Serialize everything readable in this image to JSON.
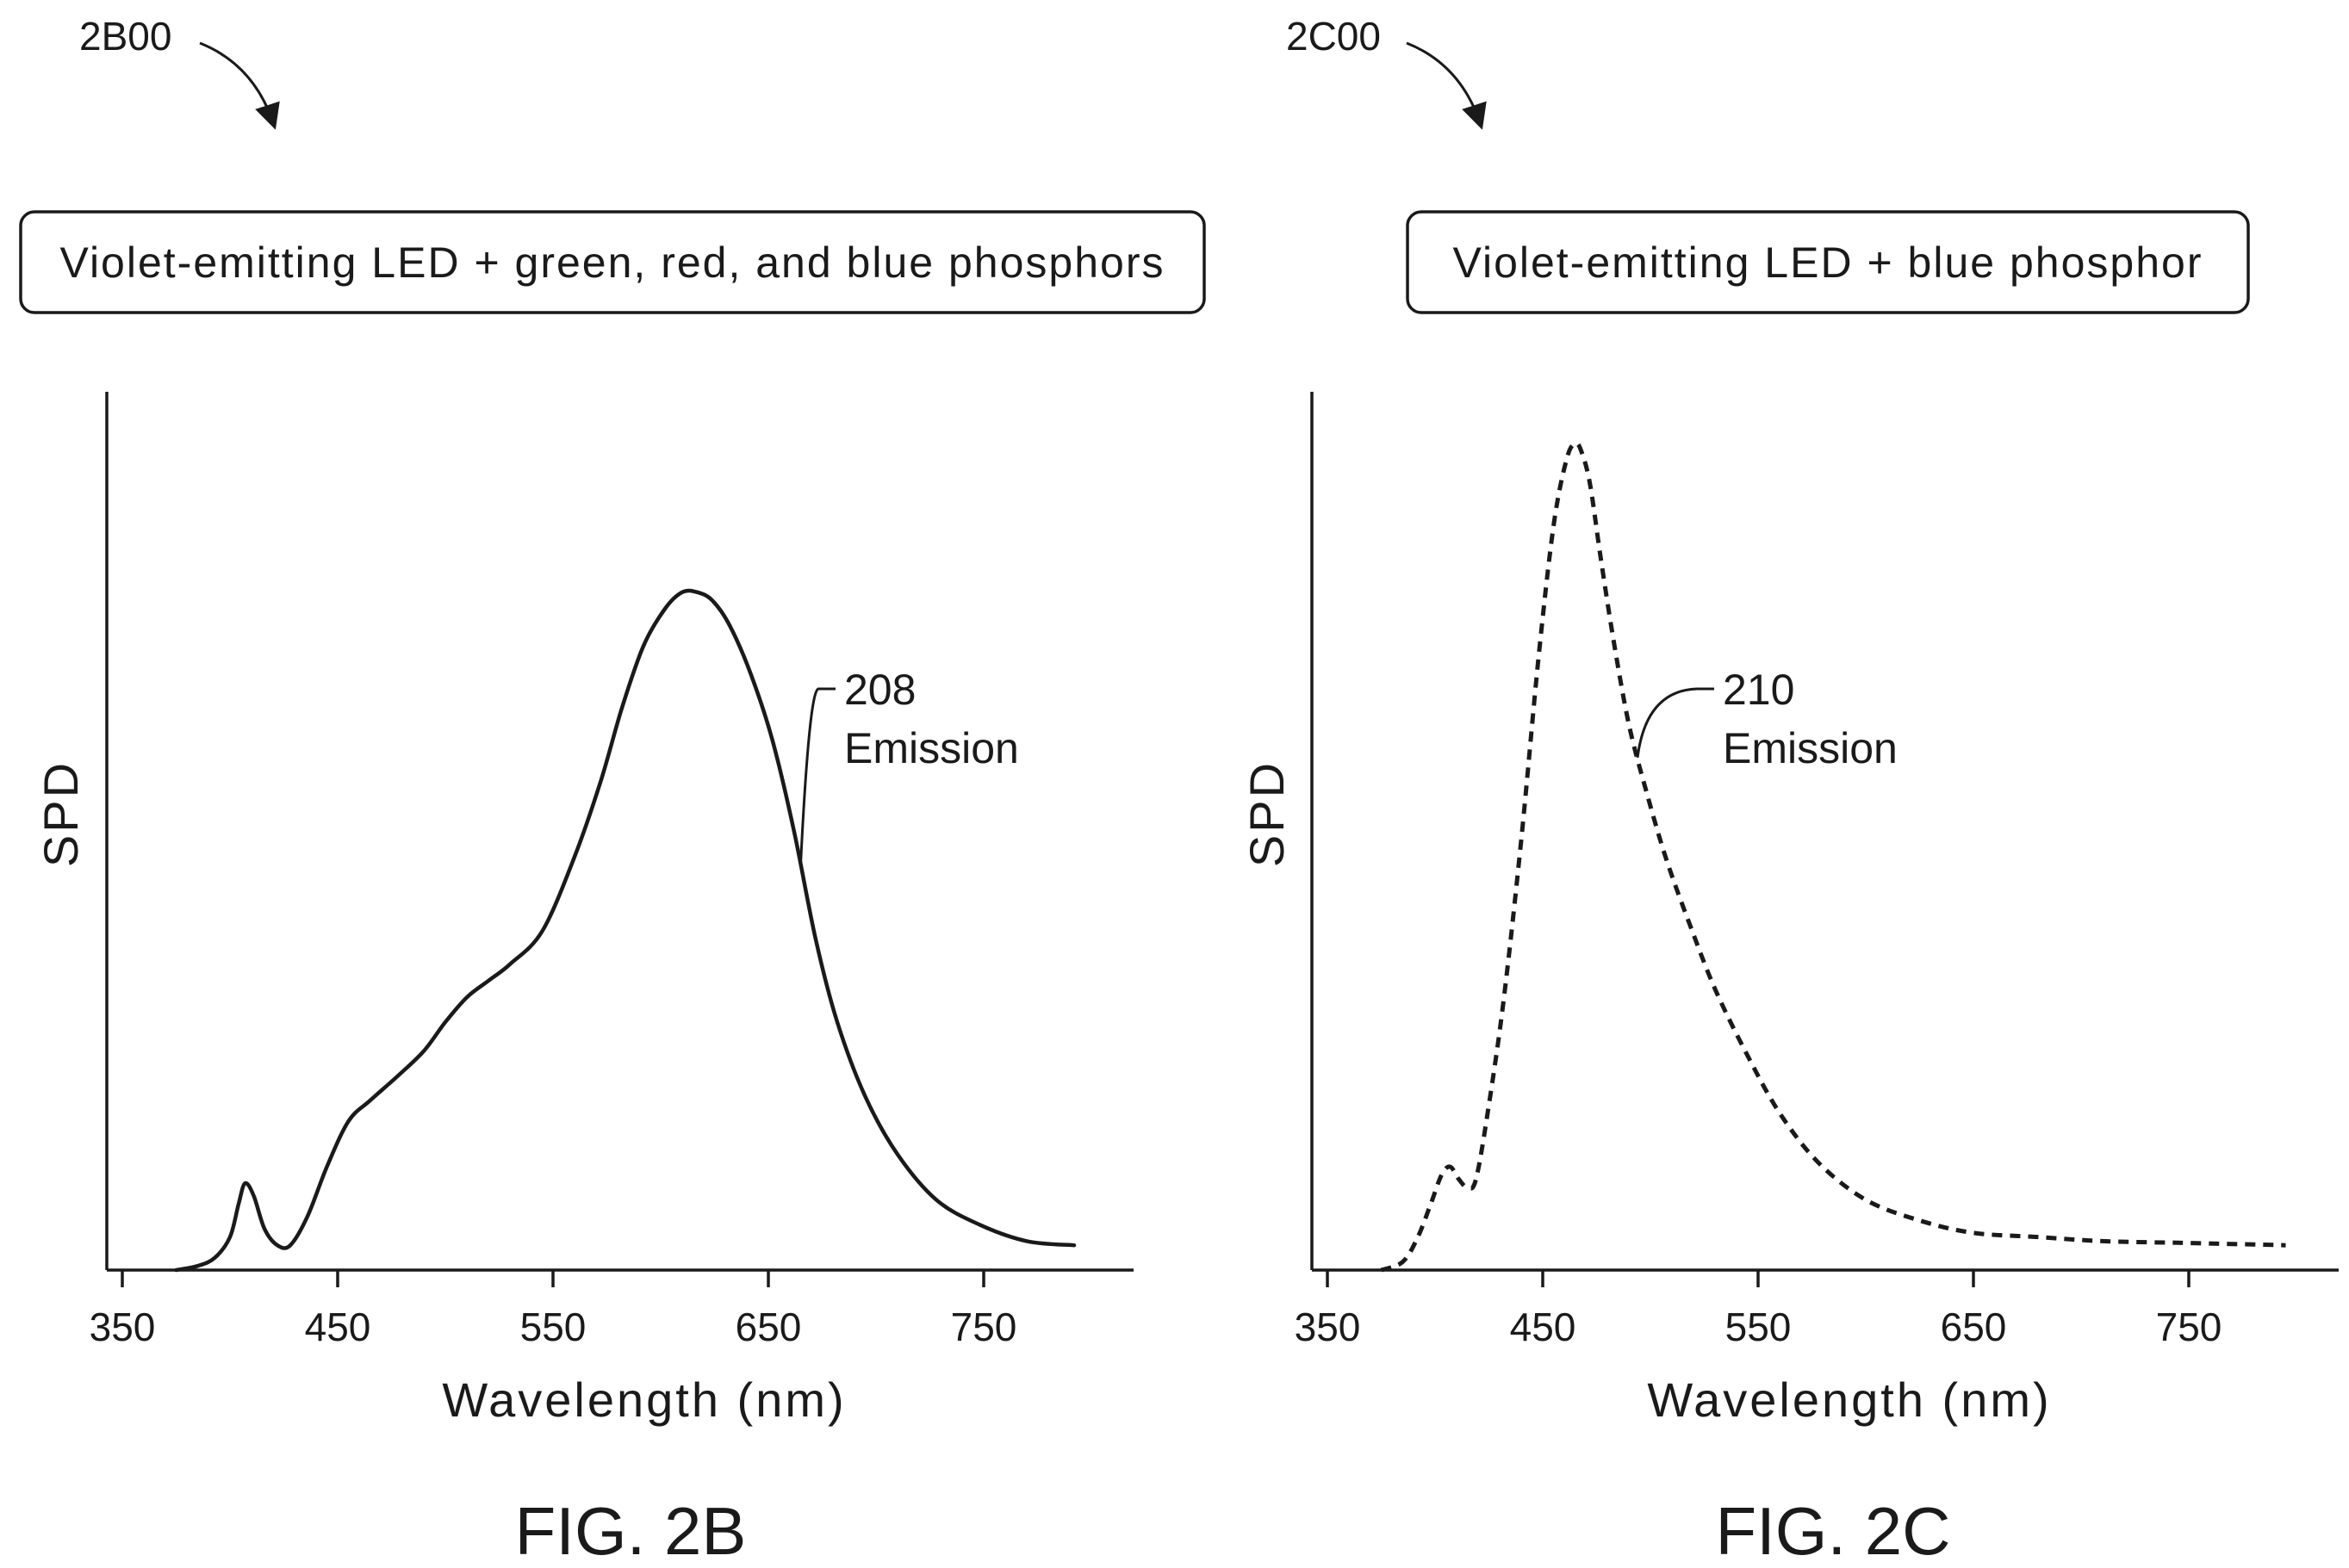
{
  "chart_data": [
    {
      "type": "line",
      "ref_label": "2B00",
      "title": "Violet-emitting LED + green, red, and blue phosphors",
      "xlabel": "Wavelength (nm)",
      "ylabel": "SPD",
      "xlim": [
        335,
        825
      ],
      "ylim": [
        0,
        1.0
      ],
      "x_ticks": [
        350,
        450,
        550,
        650,
        750
      ],
      "y_ticks_shown": false,
      "caption": "FIG. 2B",
      "line_style": "solid",
      "color": "#1a1a1a",
      "annotation": {
        "number": "208",
        "text": "Emission",
        "target_x": 665
      },
      "series": [
        {
          "x": [
            375,
            385,
            393,
            400,
            404,
            407,
            411,
            416,
            422,
            428,
            436,
            445,
            455,
            465,
            478,
            490,
            500,
            510,
            520,
            530,
            545,
            560,
            572,
            582,
            592,
            602,
            610,
            617,
            624,
            632,
            642,
            652,
            662,
            672,
            682,
            695,
            710,
            728,
            748,
            770,
            792
          ],
          "y": [
            0.0,
            0.005,
            0.015,
            0.04,
            0.08,
            0.105,
            0.09,
            0.05,
            0.03,
            0.03,
            0.065,
            0.125,
            0.18,
            0.205,
            0.235,
            0.265,
            0.3,
            0.33,
            0.35,
            0.37,
            0.41,
            0.5,
            0.59,
            0.68,
            0.755,
            0.8,
            0.82,
            0.82,
            0.81,
            0.78,
            0.72,
            0.64,
            0.53,
            0.4,
            0.3,
            0.21,
            0.14,
            0.085,
            0.055,
            0.035,
            0.03
          ]
        }
      ]
    },
    {
      "type": "line",
      "ref_label": "2C00",
      "title": "Violet-emitting LED +  blue phosphor",
      "xlabel": "Wavelength (nm)",
      "ylabel": "SPD",
      "xlim": [
        335,
        825
      ],
      "ylim": [
        0,
        1.0
      ],
      "x_ticks": [
        350,
        450,
        550,
        650,
        750
      ],
      "y_ticks_shown": false,
      "caption": "FIG. 2C",
      "line_style": "dashed",
      "color": "#1a1a1a",
      "annotation": {
        "number": "210",
        "text": "Emission",
        "target_x": 494
      },
      "series": [
        {
          "x": [
            375,
            385,
            392,
            398,
            403,
            407,
            411,
            415,
            419,
            425,
            432,
            440,
            448,
            455,
            461,
            465,
            468,
            472,
            477,
            483,
            490,
            498,
            507,
            518,
            530,
            545,
            560,
            578,
            600,
            625,
            650,
            680,
            710,
            745,
            780,
            795
          ],
          "y": [
            0.0,
            0.01,
            0.04,
            0.08,
            0.115,
            0.125,
            0.11,
            0.1,
            0.11,
            0.2,
            0.33,
            0.52,
            0.74,
            0.9,
            0.98,
            1.0,
            0.99,
            0.95,
            0.86,
            0.76,
            0.66,
            0.58,
            0.5,
            0.42,
            0.34,
            0.26,
            0.19,
            0.13,
            0.085,
            0.06,
            0.045,
            0.04,
            0.035,
            0.033,
            0.031,
            0.03
          ]
        }
      ]
    }
  ]
}
